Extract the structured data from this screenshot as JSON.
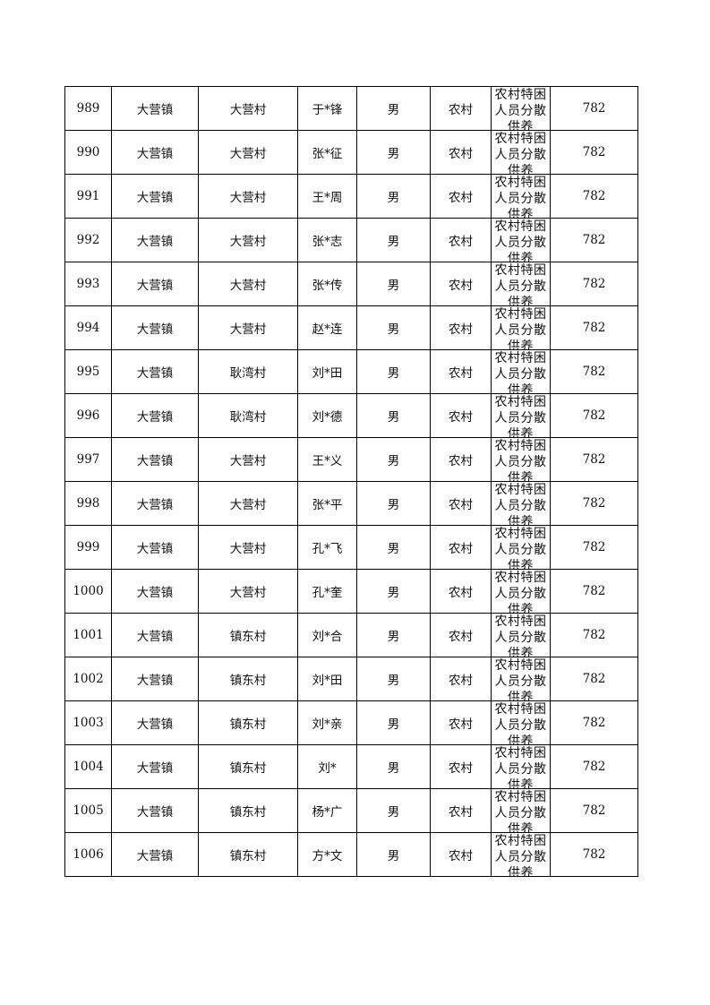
{
  "table": {
    "rows": [
      [
        "989",
        "大营镇",
        "大营村",
        "于*锋",
        "男",
        "农村",
        "农村特困人员分散供养",
        "782"
      ],
      [
        "990",
        "大营镇",
        "大营村",
        "张*征",
        "男",
        "农村",
        "农村特困人员分散供养",
        "782"
      ],
      [
        "991",
        "大营镇",
        "大营村",
        "王*周",
        "男",
        "农村",
        "农村特困人员分散供养",
        "782"
      ],
      [
        "992",
        "大营镇",
        "大营村",
        "张*志",
        "男",
        "农村",
        "农村特困人员分散供养",
        "782"
      ],
      [
        "993",
        "大营镇",
        "大营村",
        "张*传",
        "男",
        "农村",
        "农村特困人员分散供养",
        "782"
      ],
      [
        "994",
        "大营镇",
        "大营村",
        "赵*连",
        "男",
        "农村",
        "农村特困人员分散供养",
        "782"
      ],
      [
        "995",
        "大营镇",
        "耿湾村",
        "刘*田",
        "男",
        "农村",
        "农村特困人员分散供养",
        "782"
      ],
      [
        "996",
        "大营镇",
        "耿湾村",
        "刘*德",
        "男",
        "农村",
        "农村特困人员分散供养",
        "782"
      ],
      [
        "997",
        "大营镇",
        "大营村",
        "王*义",
        "男",
        "农村",
        "农村特困人员分散供养",
        "782"
      ],
      [
        "998",
        "大营镇",
        "大营村",
        "张*平",
        "男",
        "农村",
        "农村特困人员分散供养",
        "782"
      ],
      [
        "999",
        "大营镇",
        "大营村",
        "孔*飞",
        "男",
        "农村",
        "农村特困人员分散供养",
        "782"
      ],
      [
        "1000",
        "大营镇",
        "大营村",
        "孔*奎",
        "男",
        "农村",
        "农村特困人员分散供养",
        "782"
      ],
      [
        "1001",
        "大营镇",
        "镇东村",
        "刘*合",
        "男",
        "农村",
        "农村特困人员分散供养",
        "782"
      ],
      [
        "1002",
        "大营镇",
        "镇东村",
        "刘*田",
        "男",
        "农村",
        "农村特困人员分散供养",
        "782"
      ],
      [
        "1003",
        "大营镇",
        "镇东村",
        "刘*亲",
        "男",
        "农村",
        "农村特困人员分散供养",
        "782"
      ],
      [
        "1004",
        "大营镇",
        "镇东村",
        "刘*",
        "男",
        "农村",
        "农村特困人员分散供养",
        "782"
      ],
      [
        "1005",
        "大营镇",
        "镇东村",
        "杨*广",
        "男",
        "农村",
        "农村特困人员分散供养",
        "782"
      ],
      [
        "1006",
        "大营镇",
        "镇东村",
        "方*文",
        "男",
        "农村",
        "农村特困人员分散供养",
        "782"
      ]
    ]
  }
}
